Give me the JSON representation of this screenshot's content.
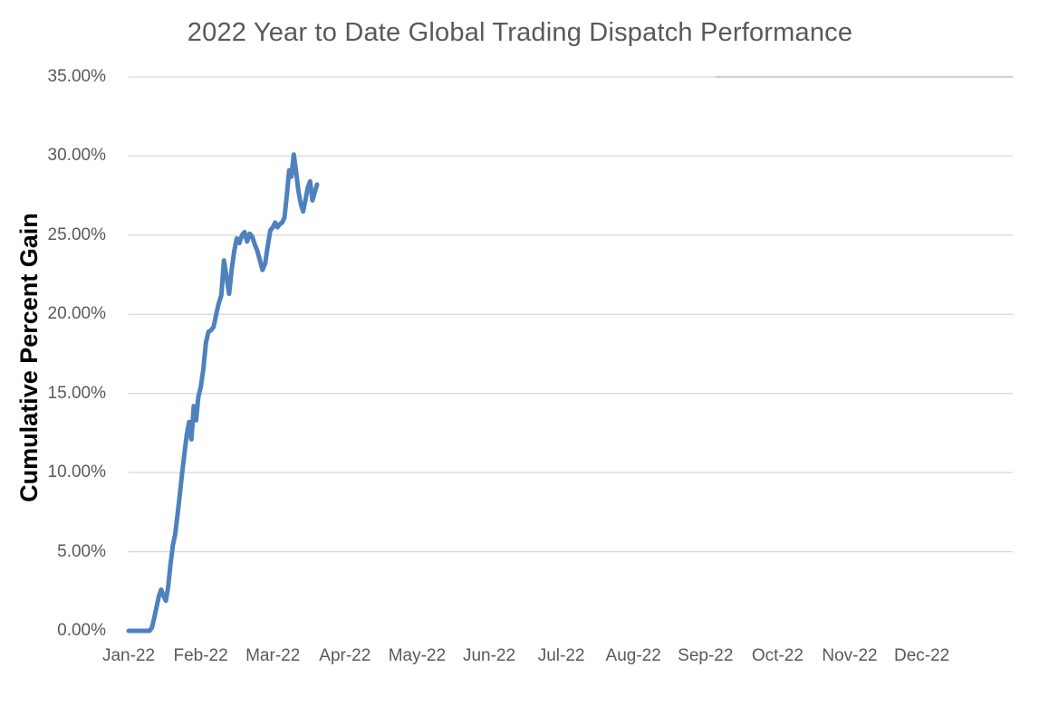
{
  "chart_data": {
    "type": "line",
    "title": "2022 Year to Date Global Trading Dispatch Performance",
    "xlabel": "",
    "ylabel": "Cumulative Percent Gain",
    "ylim": [
      0,
      35
    ],
    "y_tick_step": 5,
    "grid": "horizontal",
    "legend": "none",
    "line_color": "#4F81BD",
    "gridline_color": "#D9D9D9",
    "text_color": "#595959",
    "axis_title_color": "#000000",
    "background_color": "#FFFFFF",
    "y_ticks": [
      {
        "label": "0.00%",
        "value": 0
      },
      {
        "label": "5.00%",
        "value": 5
      },
      {
        "label": "10.00%",
        "value": 10
      },
      {
        "label": "15.00%",
        "value": 15
      },
      {
        "label": "20.00%",
        "value": 20
      },
      {
        "label": "25.00%",
        "value": 25
      },
      {
        "label": "30.00%",
        "value": 30
      },
      {
        "label": "35.00%",
        "value": 35
      }
    ],
    "gridline_values": [
      5,
      10,
      15,
      20,
      25,
      30,
      35
    ],
    "x_ticks": [
      "Jan-22",
      "Feb-22",
      "Mar-22",
      "Apr-22",
      "May-22",
      "Jun-22",
      "Jul-22",
      "Aug-22",
      "Sep-22",
      "Oct-22",
      "Nov-22",
      "Dec-22"
    ],
    "series": [
      {
        "name": "Cumulative Percent Gain",
        "unit": "%",
        "dates": [
          "Jan 1",
          "Jan 2",
          "Jan 3",
          "Jan 4",
          "Jan 5",
          "Jan 6",
          "Jan 7",
          "Jan 8",
          "Jan 9",
          "Jan 10",
          "Jan 11",
          "Jan 12",
          "Jan 13",
          "Jan 14",
          "Jan 15",
          "Jan 16",
          "Jan 17",
          "Jan 18",
          "Jan 19",
          "Jan 20",
          "Jan 21",
          "Jan 22",
          "Jan 23",
          "Jan 24",
          "Jan 25",
          "Jan 26",
          "Jan 27",
          "Jan 28",
          "Jan 29",
          "Jan 30",
          "Jan 31",
          "Feb 1",
          "Feb 2",
          "Feb 3",
          "Feb 4",
          "Feb 5",
          "Feb 6",
          "Feb 7",
          "Feb 8",
          "Feb 9",
          "Feb 10",
          "Feb 11",
          "Feb 12",
          "Feb 13",
          "Feb 14",
          "Feb 15",
          "Feb 16",
          "Feb 17",
          "Feb 18",
          "Feb 19",
          "Feb 20",
          "Feb 21",
          "Feb 22",
          "Feb 23",
          "Feb 24",
          "Feb 25",
          "Feb 26",
          "Feb 27",
          "Feb 28",
          "Mar 1",
          "Mar 2",
          "Mar 3",
          "Mar 4",
          "Mar 5",
          "Mar 6",
          "Mar 7",
          "Mar 8",
          "Mar 9",
          "Mar 10",
          "Mar 11",
          "Mar 12",
          "Mar 13",
          "Mar 14",
          "Mar 15",
          "Mar 16",
          "Mar 17",
          "Mar 18",
          "Mar 19",
          "Mar 20"
        ],
        "values": [
          0.0,
          0.0,
          0.0,
          0.0,
          0.0,
          0.0,
          0.0,
          0.0,
          0.0,
          0.0,
          0.2,
          0.8,
          1.5,
          2.2,
          2.6,
          2.2,
          1.9,
          2.8,
          4.2,
          5.4,
          6.1,
          7.3,
          8.6,
          10.0,
          11.2,
          12.4,
          13.2,
          12.1,
          14.2,
          13.3,
          14.8,
          15.4,
          16.5,
          18.2,
          18.9,
          19.0,
          19.2,
          20.0,
          20.7,
          21.2,
          23.4,
          22.4,
          21.3,
          22.8,
          24.0,
          24.8,
          24.5,
          25.0,
          25.2,
          24.6,
          25.1,
          24.9,
          24.4,
          24.0,
          23.4,
          22.8,
          23.2,
          24.3,
          25.3,
          25.5,
          25.8,
          25.5,
          25.7,
          25.8,
          26.1,
          27.5,
          29.1,
          28.7,
          30.1,
          29.0,
          27.8,
          27.0,
          26.5,
          27.2,
          28.0,
          28.4,
          27.2,
          27.7,
          28.2
        ]
      }
    ]
  }
}
